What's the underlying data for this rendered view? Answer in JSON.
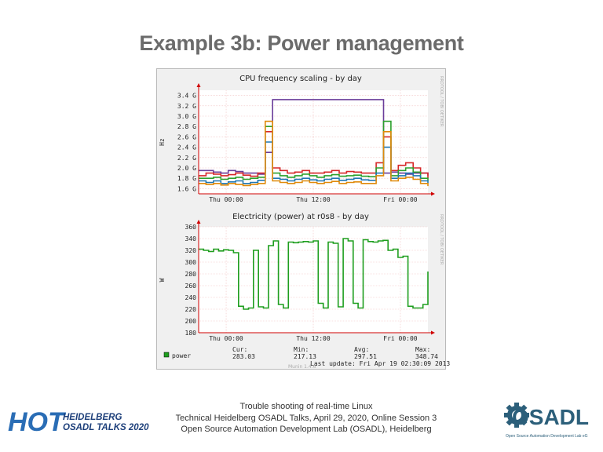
{
  "slide": {
    "title": "Example 3b: Power management",
    "footer_lines": [
      "Trouble shooting of real-time Linux",
      "Technical Heidelberg OSADL Talks, April 29, 2020, Online Session 3",
      "Open Source Automation Development Lab (OSADL), Heidelberg"
    ]
  },
  "logos": {
    "hot": {
      "big": "HOT",
      "line1": "HEIDELBERG",
      "line2": "OSADL TALKS 2020"
    },
    "osadl": {
      "name": "OSADL",
      "tagline": "Open Source Automation Development Lab eG"
    }
  },
  "colors": {
    "purple": "#6a3d9a",
    "green": "#1e9e1e",
    "axis_red": "#d00000",
    "title_gray": "#6b6b6b"
  },
  "side_label": "RRDTOOL / TOBI OETIKER",
  "chart_data": [
    {
      "type": "line",
      "title": "CPU frequency scaling - by day",
      "ylabel": "Hz",
      "yticks": [
        "1.6 G",
        "1.8 G",
        "2.0 G",
        "2.2 G",
        "2.4 G",
        "2.6 G",
        "2.8 G",
        "3.0 G",
        "3.2 G",
        "3.4 G"
      ],
      "ytick_values": [
        1.6,
        1.8,
        2.0,
        2.2,
        2.4,
        2.6,
        2.8,
        3.0,
        3.2,
        3.4
      ],
      "ylim": [
        1.5,
        3.5
      ],
      "xticks": [
        "Thu 00:00",
        "Thu 12:00",
        "Fri 00:00"
      ],
      "grid": true,
      "series": [
        {
          "values": [
            1.95,
            1.95,
            1.92,
            1.9,
            1.95,
            1.93,
            1.9,
            1.9,
            1.88,
            2.3,
            3.32,
            3.32,
            3.32,
            3.32,
            3.32,
            3.32,
            3.32,
            3.32,
            3.32,
            3.32,
            3.32,
            3.32,
            3.32,
            3.32,
            3.32,
            1.9,
            1.92,
            1.9,
            1.88,
            1.9,
            1.9,
            1.85
          ]
        },
        {
          "values": [
            1.85,
            1.9,
            1.88,
            1.85,
            1.87,
            1.9,
            1.86,
            1.84,
            1.9,
            2.7,
            2.0,
            1.95,
            1.9,
            1.92,
            1.95,
            1.9,
            1.9,
            1.92,
            1.95,
            1.9,
            1.93,
            1.92,
            1.9,
            1.9,
            2.1,
            2.6,
            1.95,
            2.05,
            2.1,
            2.0,
            1.9,
            1.8
          ]
        },
        {
          "values": [
            1.8,
            1.8,
            1.82,
            1.78,
            1.8,
            1.82,
            1.78,
            1.8,
            1.82,
            2.8,
            1.9,
            1.85,
            1.82,
            1.85,
            1.88,
            1.85,
            1.82,
            1.85,
            1.87,
            1.84,
            1.85,
            1.86,
            1.84,
            1.83,
            2.0,
            2.9,
            1.85,
            1.95,
            2.0,
            1.92,
            1.8,
            1.75
          ]
        },
        {
          "values": [
            1.75,
            1.72,
            1.75,
            1.7,
            1.73,
            1.75,
            1.7,
            1.72,
            1.76,
            2.5,
            1.8,
            1.78,
            1.75,
            1.78,
            1.8,
            1.77,
            1.75,
            1.78,
            1.8,
            1.76,
            1.78,
            1.8,
            1.77,
            1.76,
            1.9,
            2.4,
            1.8,
            1.85,
            1.9,
            1.85,
            1.75,
            1.7
          ]
        },
        {
          "values": [
            1.7,
            1.68,
            1.7,
            1.67,
            1.7,
            1.68,
            1.66,
            1.68,
            1.7,
            2.9,
            1.75,
            1.72,
            1.7,
            1.72,
            1.75,
            1.72,
            1.7,
            1.72,
            1.74,
            1.7,
            1.72,
            1.73,
            1.7,
            1.7,
            1.85,
            2.7,
            1.75,
            1.8,
            1.82,
            1.78,
            1.7,
            1.65
          ]
        }
      ]
    },
    {
      "type": "line",
      "title": "Electricity (power) at r0s8 - by day",
      "ylabel": "W",
      "yticks": [
        "180",
        "200",
        "220",
        "240",
        "260",
        "280",
        "300",
        "320",
        "340",
        "360"
      ],
      "ytick_values": [
        180,
        200,
        220,
        240,
        260,
        280,
        300,
        320,
        340,
        360
      ],
      "ylim": [
        180,
        360
      ],
      "xticks": [
        "Thu 00:00",
        "Thu 12:00",
        "Fri 00:00"
      ],
      "grid": true,
      "legend": {
        "label": "power"
      },
      "stats": {
        "cur_label": "Cur:",
        "cur": "283.03",
        "min_label": "Min:",
        "min": "217.13",
        "avg_label": "Avg:",
        "avg": "297.51",
        "max_label": "Max:",
        "max": "348.74"
      },
      "last_update": "Last update: Fri Apr 19 02:30:09 2013",
      "watermark": "Munin 1.4.6",
      "series": [
        {
          "name": "power",
          "values": [
            322,
            320,
            318,
            322,
            319,
            321,
            320,
            316,
            225,
            220,
            222,
            320,
            224,
            222,
            328,
            336,
            228,
            222,
            334,
            333,
            334,
            335,
            334,
            336,
            230,
            222,
            334,
            332,
            224,
            340,
            336,
            230,
            222,
            338,
            335,
            334,
            336,
            337,
            320,
            322,
            308,
            310,
            225,
            222,
            222,
            228,
            284
          ]
        }
      ]
    }
  ]
}
